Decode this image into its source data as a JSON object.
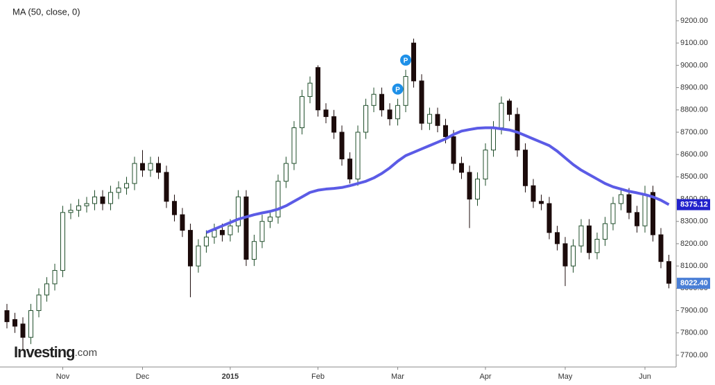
{
  "chart_data": {
    "type": "candlestick",
    "title": "MA (50, close, 0)",
    "watermark": [
      "Investing",
      ".com"
    ],
    "categories": [
      null,
      null,
      null,
      null,
      null,
      null,
      null,
      "Nov",
      null,
      null,
      null,
      null,
      null,
      null,
      null,
      null,
      null,
      "Dec",
      null,
      null,
      null,
      null,
      null,
      null,
      null,
      null,
      null,
      null,
      "2015",
      null,
      null,
      null,
      null,
      null,
      null,
      null,
      null,
      null,
      null,
      "Feb",
      null,
      null,
      null,
      null,
      null,
      null,
      null,
      null,
      null,
      "Mar",
      null,
      null,
      null,
      null,
      null,
      null,
      null,
      null,
      null,
      null,
      "Apr",
      null,
      null,
      null,
      null,
      null,
      null,
      null,
      null,
      null,
      "May",
      null,
      null,
      null,
      null,
      null,
      null,
      null,
      null,
      null,
      "Jun",
      null,
      null,
      null
    ],
    "open": [
      7900,
      7860,
      7840,
      7780,
      7900,
      7970,
      8020,
      8080,
      8340,
      8350,
      8370,
      8380,
      8410,
      8380,
      8430,
      8450,
      8470,
      8560,
      8530,
      8560,
      8520,
      8390,
      8330,
      8260,
      8100,
      8190,
      8230,
      8260,
      8240,
      8280,
      8410,
      8130,
      8210,
      8300,
      8320,
      8480,
      8560,
      8720,
      8860,
      8990,
      8800,
      8770,
      8700,
      8580,
      8490,
      8700,
      8820,
      8870,
      8800,
      8760,
      8820,
      9100,
      8930,
      8740,
      8780,
      8730,
      8680,
      8560,
      8520,
      8400,
      8490,
      8620,
      8720,
      8840,
      8780,
      8620,
      8460,
      8390,
      8380,
      8250,
      8200,
      8100,
      8190,
      8280,
      8160,
      8220,
      8290,
      8380,
      8420,
      8340,
      8280,
      8430,
      8240,
      8120
    ],
    "high": [
      7930,
      7890,
      7870,
      7930,
      8000,
      8050,
      8110,
      8370,
      8380,
      8400,
      8410,
      8440,
      8440,
      8460,
      8480,
      8500,
      8590,
      8620,
      8590,
      8590,
      8550,
      8420,
      8360,
      8290,
      8220,
      8260,
      8290,
      8290,
      8310,
      8440,
      8440,
      8240,
      8330,
      8350,
      8510,
      8590,
      8750,
      8890,
      8950,
      9000,
      8830,
      8800,
      8730,
      8610,
      8730,
      8850,
      8900,
      8900,
      8830,
      8850,
      8980,
      9120,
      8960,
      8810,
      8810,
      8760,
      8710,
      8590,
      8550,
      8520,
      8650,
      8750,
      8860,
      8850,
      8810,
      8650,
      8490,
      8420,
      8410,
      8280,
      8230,
      8220,
      8310,
      8310,
      8250,
      8320,
      8410,
      8450,
      8450,
      8370,
      8460,
      8460,
      8270,
      8150
    ],
    "low": [
      7820,
      7800,
      7720,
      7750,
      7870,
      7940,
      7990,
      8050,
      8310,
      8320,
      8340,
      8350,
      8350,
      8350,
      8400,
      8420,
      8440,
      8500,
      8500,
      8490,
      8360,
      8300,
      8230,
      7960,
      8070,
      8160,
      8200,
      8210,
      8210,
      8250,
      8100,
      8100,
      8180,
      8270,
      8290,
      8450,
      8530,
      8690,
      8830,
      8770,
      8740,
      8670,
      8550,
      8470,
      8460,
      8670,
      8790,
      8770,
      8730,
      8730,
      8790,
      8900,
      8710,
      8710,
      8700,
      8650,
      8530,
      8490,
      8270,
      8370,
      8460,
      8590,
      8690,
      8750,
      8590,
      8430,
      8360,
      8350,
      8220,
      8170,
      8010,
      8070,
      8160,
      8130,
      8130,
      8190,
      8260,
      8350,
      8310,
      8250,
      8250,
      8210,
      8090,
      8000
    ],
    "close": [
      7850,
      7830,
      7780,
      7900,
      7970,
      8020,
      8080,
      8340,
      8350,
      8370,
      8380,
      8410,
      8380,
      8430,
      8450,
      8470,
      8560,
      8530,
      8560,
      8520,
      8390,
      8330,
      8260,
      8100,
      8190,
      8230,
      8260,
      8240,
      8280,
      8410,
      8130,
      8210,
      8300,
      8320,
      8480,
      8560,
      8720,
      8860,
      8920,
      8800,
      8770,
      8700,
      8580,
      8490,
      8700,
      8820,
      8870,
      8800,
      8760,
      8820,
      8950,
      8930,
      8740,
      8780,
      8730,
      8680,
      8560,
      8520,
      8400,
      8490,
      8620,
      8720,
      8830,
      8780,
      8620,
      8460,
      8390,
      8380,
      8250,
      8200,
      8100,
      8190,
      8280,
      8160,
      8220,
      8290,
      8380,
      8420,
      8340,
      8280,
      8420,
      8240,
      8120,
      8022.4
    ],
    "last_close_label": "8022.40",
    "up_color": "#ffffff",
    "up_stroke": "#1f4d2a",
    "down_color": "#1c0b0b",
    "series": [
      {
        "name": "MA (50, close, 0)",
        "color": "#5b5be6",
        "values": [
          null,
          null,
          null,
          null,
          null,
          null,
          null,
          null,
          null,
          null,
          null,
          null,
          null,
          null,
          null,
          null,
          null,
          null,
          null,
          null,
          null,
          null,
          null,
          null,
          null,
          8250,
          8265,
          8280,
          8295,
          8310,
          8320,
          8330,
          8338,
          8345,
          8355,
          8370,
          8390,
          8410,
          8430,
          8440,
          8445,
          8448,
          8452,
          8460,
          8470,
          8480,
          8495,
          8515,
          8540,
          8570,
          8595,
          8610,
          8625,
          8640,
          8655,
          8670,
          8690,
          8705,
          8712,
          8718,
          8720,
          8720,
          8715,
          8710,
          8700,
          8685,
          8670,
          8655,
          8640,
          8615,
          8585,
          8555,
          8530,
          8510,
          8490,
          8470,
          8455,
          8445,
          8435,
          8428,
          8420,
          8410,
          8395,
          8375.12
        ]
      }
    ],
    "markers": [
      {
        "index": 49,
        "label": "P"
      },
      {
        "index": 50,
        "label": "P"
      }
    ],
    "ylim": [
      7647,
      9293
    ],
    "yticks": [
      {
        "value": 7700,
        "label": "7700.00"
      },
      {
        "value": 7800,
        "label": "7800.00"
      },
      {
        "value": 7900,
        "label": "7900.00"
      },
      {
        "value": 8000,
        "label": "8000.00"
      },
      {
        "value": 8100,
        "label": "8100.00"
      },
      {
        "value": 8200,
        "label": "8200.00"
      },
      {
        "value": 8300,
        "label": "8300.00"
      },
      {
        "value": 8400,
        "label": "8400.00"
      },
      {
        "value": 8500,
        "label": "8500.00"
      },
      {
        "value": 8600,
        "label": "8600.00"
      },
      {
        "value": 8700,
        "label": "8700.00"
      },
      {
        "value": 8800,
        "label": "8800.00"
      },
      {
        "value": 8900,
        "label": "8900.00"
      },
      {
        "value": 9000,
        "label": "9000.00"
      },
      {
        "value": 9100,
        "label": "9100.00"
      },
      {
        "value": 9200,
        "label": "9200.00"
      }
    ],
    "grid": false
  }
}
